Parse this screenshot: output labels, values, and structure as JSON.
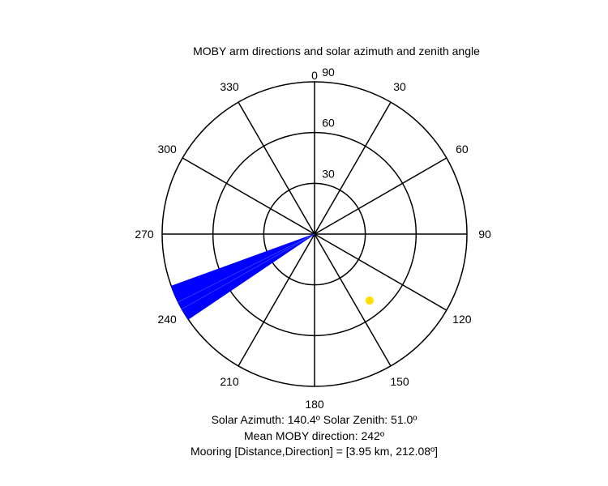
{
  "chart_data": {
    "type": "polar",
    "title": "MOBY arm directions and solar azimuth and zenith angle",
    "azimuth_ticks": [
      0,
      30,
      60,
      90,
      120,
      150,
      180,
      210,
      240,
      270,
      300,
      330
    ],
    "zenith_rings": [
      30,
      60,
      90
    ],
    "zenith_labels": [
      "30",
      "60",
      "90"
    ],
    "rmax": 90,
    "arm_directions": {
      "name": "MOBY arm directions",
      "color": "#0000ff",
      "azimuth_range_deg": [
        236,
        250
      ],
      "length": 90
    },
    "sun": {
      "azimuth": 140.4,
      "zenith": 51.0,
      "color": "#ffdd00"
    }
  },
  "footer": {
    "line1": "Solar Azimuth: 140.4º   Solar Zenith: 51.0º",
    "line2": "Mean MOBY direction: 242º",
    "line3": "Mooring [Distance,Direction] = [3.95 km, 212.08º]"
  }
}
